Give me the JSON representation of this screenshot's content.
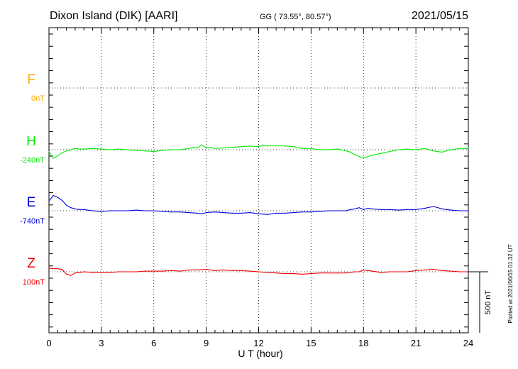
{
  "header": {
    "station": "Dixon Island (DIK)  [AARI]",
    "coords": "GG ( 73.55°,  80.57°)",
    "date": "2021/05/15"
  },
  "footer": {
    "plotted": "Plotted at 2021/06/15 01:32 UT"
  },
  "chart_data": {
    "type": "line",
    "xlabel": "U T (hour)",
    "xlim": [
      0,
      24
    ],
    "xticks": [
      "0",
      "3",
      "6",
      "9",
      "12",
      "15",
      "18",
      "21",
      "24"
    ],
    "grid": true,
    "scale_bar": {
      "label": "500 nT",
      "value_nT": 500
    },
    "colors": {
      "F": "#ffa500",
      "H": "#00ee00",
      "E": "#0000dd",
      "Z": "#ee0000"
    },
    "series": [
      {
        "name": "F",
        "baseline_label": "0nT",
        "color": "#ffa500",
        "x": [],
        "values": []
      },
      {
        "name": "H",
        "baseline_label": "-240nT",
        "color": "#00ee00",
        "x": [
          0,
          0.25,
          0.5,
          0.75,
          1,
          1.25,
          1.5,
          1.75,
          2,
          2.5,
          3,
          3.5,
          4,
          4.5,
          5,
          5.5,
          6,
          6.5,
          7,
          7.5,
          8,
          8.25,
          8.5,
          8.75,
          9,
          9.25,
          9.5,
          10,
          10.5,
          11,
          11.5,
          12,
          12.25,
          12.5,
          13,
          13.5,
          14,
          14.5,
          15,
          15.5,
          16,
          16.5,
          17,
          17.25,
          17.5,
          17.75,
          18,
          18.25,
          18.5,
          19,
          19.5,
          20,
          20.5,
          21,
          21.5,
          22,
          22.5,
          23,
          23.5,
          24
        ],
        "values": [
          -15,
          -70,
          -50,
          -25,
          -10,
          0,
          10,
          5,
          5,
          10,
          5,
          0,
          5,
          0,
          -5,
          -10,
          -15,
          -5,
          0,
          0,
          10,
          20,
          15,
          40,
          15,
          20,
          10,
          15,
          20,
          25,
          30,
          25,
          40,
          30,
          35,
          30,
          25,
          10,
          10,
          0,
          0,
          5,
          -10,
          -20,
          -40,
          -55,
          -70,
          -55,
          -45,
          -30,
          -15,
          0,
          5,
          0,
          10,
          -10,
          -20,
          0,
          10,
          10
        ]
      },
      {
        "name": "E",
        "baseline_label": "-740nT",
        "color": "#0000dd",
        "x": [
          0,
          0.25,
          0.5,
          0.75,
          1,
          1.25,
          1.5,
          1.75,
          2,
          2.5,
          3,
          3.5,
          4,
          4.5,
          5,
          5.5,
          6,
          6.5,
          7,
          7.5,
          8,
          8.5,
          8.75,
          9,
          9.5,
          10,
          10.5,
          11,
          11.5,
          12,
          12.5,
          13,
          13.5,
          14,
          14.5,
          15,
          15.5,
          16,
          16.5,
          17,
          17.25,
          17.5,
          17.75,
          18,
          18.25,
          18.5,
          19,
          19.5,
          20,
          20.5,
          21,
          21.5,
          22,
          22.5,
          23,
          23.5,
          24
        ],
        "values": [
          80,
          125,
          110,
          85,
          45,
          25,
          15,
          10,
          10,
          0,
          -5,
          0,
          0,
          0,
          5,
          0,
          0,
          -5,
          -10,
          -10,
          -15,
          -20,
          -25,
          -15,
          -10,
          -15,
          -20,
          -20,
          -15,
          -25,
          -30,
          -20,
          -20,
          -15,
          -10,
          -10,
          -5,
          0,
          0,
          0,
          10,
          15,
          25,
          10,
          20,
          15,
          10,
          10,
          5,
          10,
          10,
          20,
          35,
          15,
          5,
          0,
          0
        ]
      },
      {
        "name": "Z",
        "baseline_label": "100nT",
        "color": "#ee0000",
        "x": [
          0,
          0.25,
          0.5,
          0.75,
          1,
          1.25,
          1.5,
          1.75,
          2,
          2.5,
          3,
          3.5,
          4,
          4.5,
          5,
          5.5,
          6,
          6.5,
          7,
          7.5,
          8,
          8.5,
          9,
          9.5,
          10,
          10.5,
          11,
          11.5,
          12,
          12.5,
          13,
          13.5,
          14,
          14.5,
          15,
          15.5,
          16,
          16.5,
          17,
          17.5,
          17.75,
          18,
          18.25,
          18.5,
          19,
          19.5,
          20,
          20.5,
          21,
          21.5,
          22,
          22.5,
          23,
          23.5,
          24
        ],
        "values": [
          30,
          25,
          25,
          20,
          -20,
          -30,
          -10,
          -5,
          0,
          -5,
          -5,
          -5,
          0,
          0,
          0,
          5,
          5,
          5,
          10,
          5,
          15,
          15,
          20,
          10,
          15,
          10,
          10,
          5,
          0,
          -5,
          -10,
          -15,
          -15,
          -20,
          -15,
          -10,
          -10,
          -10,
          -10,
          0,
          0,
          15,
          10,
          5,
          -5,
          0,
          0,
          0,
          10,
          15,
          20,
          10,
          5,
          0,
          0
        ]
      }
    ]
  }
}
